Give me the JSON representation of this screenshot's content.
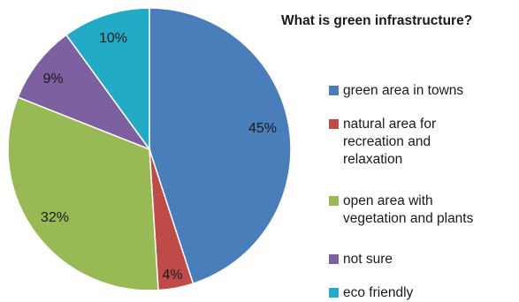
{
  "chart_data": {
    "type": "pie",
    "title": "What is green infrastructure?",
    "categories": [
      "green area in towns",
      "natural area for\nrecreation and\nrelaxation",
      "open area with\nvegetation and plants",
      "not sure",
      "eco friendly"
    ],
    "values": [
      45,
      4,
      32,
      9,
      10
    ],
    "value_labels": [
      "45%",
      "4%",
      "32%",
      "9%",
      "10%"
    ],
    "colors": [
      "#4a7ebb",
      "#be4b48",
      "#98b954",
      "#7d60a0",
      "#23aac6"
    ],
    "legend_position": "right",
    "start_angle": "12 o'clock, clockwise"
  }
}
